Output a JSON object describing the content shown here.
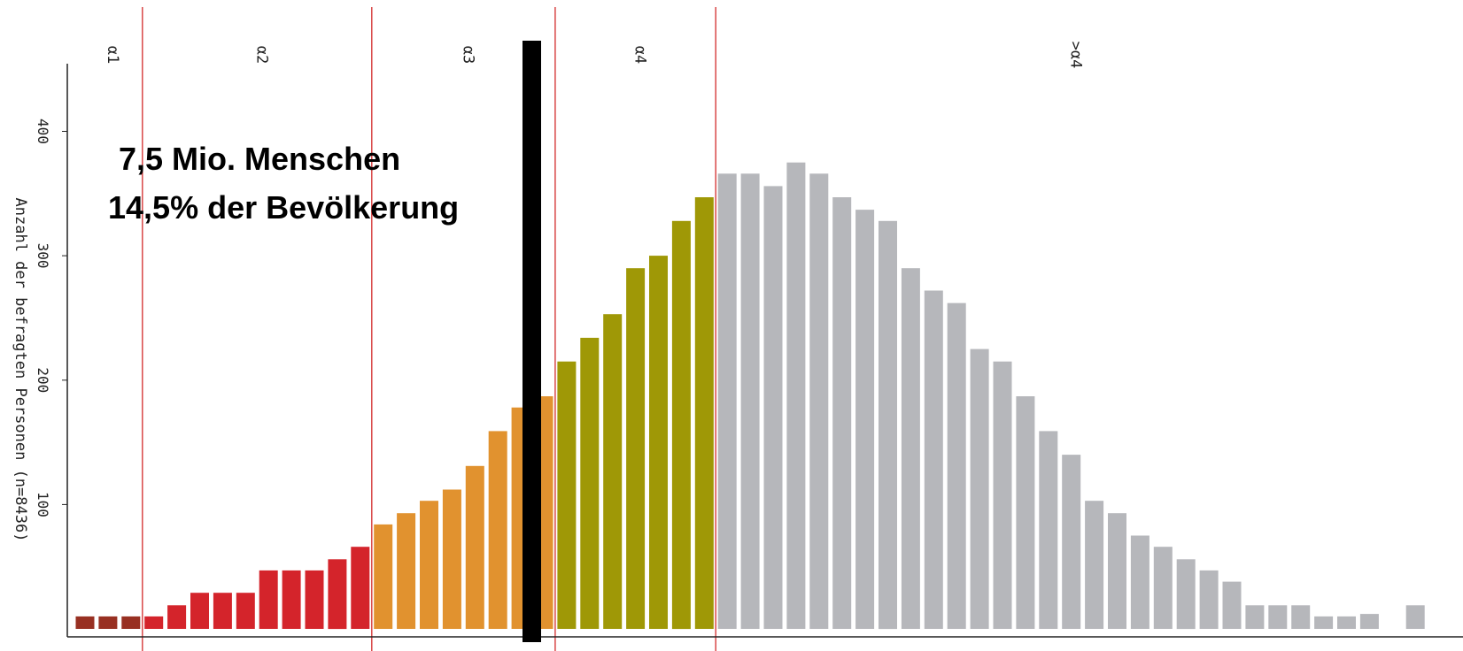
{
  "chart_data": {
    "type": "bar",
    "ylabel": "Anzahl der befragten Personen (n=8436)",
    "yticks": [
      100,
      200,
      300,
      400
    ],
    "ylim": [
      0,
      440
    ],
    "level_labels": [
      "α1",
      "α2",
      "α3",
      "α4",
      ">α4"
    ],
    "annotation": [
      "7,5 Mio. Menschen",
      "14,5% der Bevölkerung"
    ],
    "colors": {
      "alpha1": "#983022",
      "alpha2": "#d4242b",
      "alpha3": "#e1922f",
      "alpha4": "#9f9806",
      "above_alpha4": "#b6b7bb",
      "divider": "#d63a3a",
      "marker": "#000000"
    },
    "values": [
      10,
      10,
      10,
      10,
      19,
      29,
      29,
      29,
      47,
      47,
      47,
      56,
      66,
      84,
      93,
      103,
      112,
      131,
      159,
      178,
      187,
      215,
      234,
      253,
      290,
      300,
      328,
      347,
      366,
      366,
      356,
      375,
      366,
      347,
      337,
      328,
      290,
      272,
      262,
      225,
      215,
      187,
      159,
      140,
      103,
      93,
      75,
      66,
      56,
      47,
      38,
      19,
      19,
      19,
      10,
      10,
      12,
      0,
      19
    ],
    "groups": [
      "alpha1",
      "alpha1",
      "alpha1",
      "alpha2",
      "alpha2",
      "alpha2",
      "alpha2",
      "alpha2",
      "alpha2",
      "alpha2",
      "alpha2",
      "alpha2",
      "alpha2",
      "alpha3",
      "alpha3",
      "alpha3",
      "alpha3",
      "alpha3",
      "alpha3",
      "alpha3",
      "alpha3",
      "alpha4",
      "alpha4",
      "alpha4",
      "alpha4",
      "alpha4",
      "alpha4",
      "alpha4",
      "above_alpha4",
      "above_alpha4",
      "above_alpha4",
      "above_alpha4",
      "above_alpha4",
      "above_alpha4",
      "above_alpha4",
      "above_alpha4",
      "above_alpha4",
      "above_alpha4",
      "above_alpha4",
      "above_alpha4",
      "above_alpha4",
      "above_alpha4",
      "above_alpha4",
      "above_alpha4",
      "above_alpha4",
      "above_alpha4",
      "above_alpha4",
      "above_alpha4",
      "above_alpha4",
      "above_alpha4",
      "above_alpha4",
      "above_alpha4",
      "above_alpha4",
      "above_alpha4",
      "above_alpha4",
      "above_alpha4",
      "above_alpha4",
      "above_alpha4",
      "above_alpha4"
    ]
  }
}
